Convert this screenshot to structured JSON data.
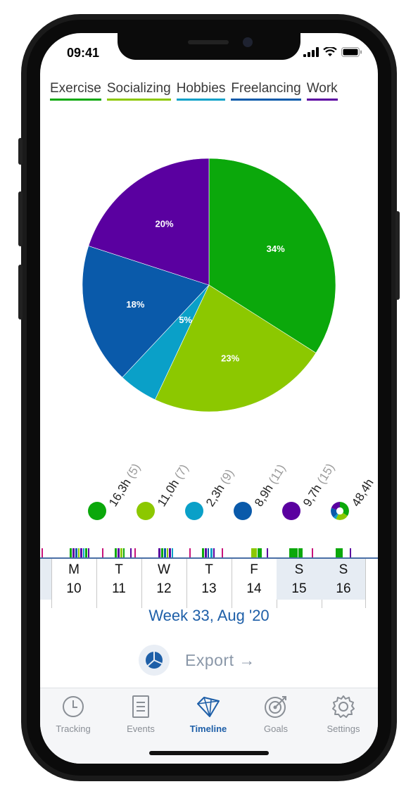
{
  "status": {
    "time": "09:41"
  },
  "legend": [
    {
      "label": "Exercise",
      "color": "#0ba80b"
    },
    {
      "label": "Socializing",
      "color": "#8cc800"
    },
    {
      "label": "Hobbies",
      "color": "#0aa0c8"
    },
    {
      "label": "Freelancing",
      "color": "#0a5aaa"
    },
    {
      "label": "Work",
      "color": "#5a00a0"
    }
  ],
  "chart_data": {
    "type": "pie",
    "categories": [
      "Exercise",
      "Socializing",
      "Hobbies",
      "Freelancing",
      "Work"
    ],
    "values": [
      34,
      23,
      5,
      18,
      20
    ],
    "labels": [
      "34%",
      "23%",
      "5%",
      "18%",
      "20%"
    ],
    "colors": [
      "#0ba80b",
      "#8cc800",
      "#0aa0c8",
      "#0a5aaa",
      "#5a00a0"
    ]
  },
  "stats": [
    {
      "value": "16,3h",
      "count": "(5)",
      "color": "#0ba80b"
    },
    {
      "value": "11,0h",
      "count": "(7)",
      "color": "#8cc800"
    },
    {
      "value": "2,3h",
      "count": "(9)",
      "color": "#0aa0c8"
    },
    {
      "value": "8,9h",
      "count": "(11)",
      "color": "#0a5aaa"
    },
    {
      "value": "9,7h",
      "count": "(15)",
      "color": "#5a00a0"
    },
    {
      "value": "48,4h",
      "count": "",
      "color": "total"
    }
  ],
  "days": [
    {
      "dow": "M",
      "num": "10",
      "weekend": false
    },
    {
      "dow": "T",
      "num": "11",
      "weekend": false
    },
    {
      "dow": "W",
      "num": "12",
      "weekend": false
    },
    {
      "dow": "T",
      "num": "13",
      "weekend": false
    },
    {
      "dow": "F",
      "num": "14",
      "weekend": false
    },
    {
      "dow": "S",
      "num": "15",
      "weekend": true
    },
    {
      "dow": "S",
      "num": "16",
      "weekend": true
    }
  ],
  "week_label": "Week 33, Aug '20",
  "export": {
    "label": "Export →"
  },
  "tabs": [
    {
      "label": "Tracking",
      "icon": "clock-icon",
      "active": false
    },
    {
      "label": "Events",
      "icon": "document-icon",
      "active": false
    },
    {
      "label": "Timeline",
      "icon": "diamond-icon",
      "active": true
    },
    {
      "label": "Goals",
      "icon": "target-icon",
      "active": false
    },
    {
      "label": "Settings",
      "icon": "gear-icon",
      "active": false
    }
  ]
}
